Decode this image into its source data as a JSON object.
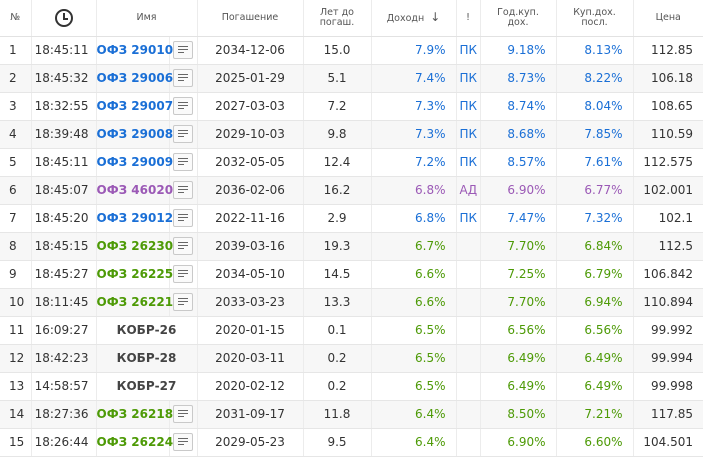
{
  "headers": {
    "num": "№",
    "time_icon": "clock-icon",
    "name": "Имя",
    "maturity": "Погашение",
    "years_1": "Лет до",
    "years_2": "погаш.",
    "yield": "Доходн",
    "sort_arrow": "↓",
    "flag": "!",
    "coupon_1": "Год.куп.",
    "coupon_2": "дох.",
    "lastcoupon_1": "Куп.дох.",
    "lastcoupon_2": "посл.",
    "price": "Цена"
  },
  "colors": {
    "blue": "#1a6fd6",
    "purple": "#9b59b6",
    "green": "#4d9a06",
    "dark": "#444444"
  },
  "rows": [
    {
      "num": "1",
      "time": "18:45:11",
      "name": "ОФЗ 29010",
      "menu": true,
      "maturity": "2034-12-06",
      "years": "15.0",
      "yield": "7.9%",
      "flag": "ПК",
      "coupon": "9.18%",
      "last": "8.13%",
      "price": "112.85",
      "color": "blue"
    },
    {
      "num": "2",
      "time": "18:45:32",
      "name": "ОФЗ 29006",
      "menu": true,
      "maturity": "2025-01-29",
      "years": "5.1",
      "yield": "7.4%",
      "flag": "ПК",
      "coupon": "8.73%",
      "last": "8.22%",
      "price": "106.18",
      "color": "blue"
    },
    {
      "num": "3",
      "time": "18:32:55",
      "name": "ОФЗ 29007",
      "menu": true,
      "maturity": "2027-03-03",
      "years": "7.2",
      "yield": "7.3%",
      "flag": "ПК",
      "coupon": "8.74%",
      "last": "8.04%",
      "price": "108.65",
      "color": "blue"
    },
    {
      "num": "4",
      "time": "18:39:48",
      "name": "ОФЗ 29008",
      "menu": true,
      "maturity": "2029-10-03",
      "years": "9.8",
      "yield": "7.3%",
      "flag": "ПК",
      "coupon": "8.68%",
      "last": "7.85%",
      "price": "110.59",
      "color": "blue"
    },
    {
      "num": "5",
      "time": "18:45:11",
      "name": "ОФЗ 29009",
      "menu": true,
      "maturity": "2032-05-05",
      "years": "12.4",
      "yield": "7.2%",
      "flag": "ПК",
      "coupon": "8.57%",
      "last": "7.61%",
      "price": "112.575",
      "color": "blue"
    },
    {
      "num": "6",
      "time": "18:45:07",
      "name": "ОФЗ 46020",
      "menu": true,
      "maturity": "2036-02-06",
      "years": "16.2",
      "yield": "6.8%",
      "flag": "АД",
      "coupon": "6.90%",
      "last": "6.77%",
      "price": "102.001",
      "color": "purple"
    },
    {
      "num": "7",
      "time": "18:45:20",
      "name": "ОФЗ 29012",
      "menu": true,
      "maturity": "2022-11-16",
      "years": "2.9",
      "yield": "6.8%",
      "flag": "ПК",
      "coupon": "7.47%",
      "last": "7.32%",
      "price": "102.1",
      "color": "blue"
    },
    {
      "num": "8",
      "time": "18:45:15",
      "name": "ОФЗ 26230",
      "menu": true,
      "maturity": "2039-03-16",
      "years": "19.3",
      "yield": "6.7%",
      "flag": "",
      "coupon": "7.70%",
      "last": "6.84%",
      "price": "112.5",
      "color": "green"
    },
    {
      "num": "9",
      "time": "18:45:27",
      "name": "ОФЗ 26225",
      "menu": true,
      "maturity": "2034-05-10",
      "years": "14.5",
      "yield": "6.6%",
      "flag": "",
      "coupon": "7.25%",
      "last": "6.79%",
      "price": "106.842",
      "color": "green"
    },
    {
      "num": "10",
      "time": "18:11:45",
      "name": "ОФЗ 26221",
      "menu": true,
      "maturity": "2033-03-23",
      "years": "13.3",
      "yield": "6.6%",
      "flag": "",
      "coupon": "7.70%",
      "last": "6.94%",
      "price": "110.894",
      "color": "green"
    },
    {
      "num": "11",
      "time": "16:09:27",
      "name": "КОБР-26",
      "menu": false,
      "maturity": "2020-01-15",
      "years": "0.1",
      "yield": "6.5%",
      "flag": "",
      "coupon": "6.56%",
      "last": "6.56%",
      "price": "99.992",
      "color": "green"
    },
    {
      "num": "12",
      "time": "18:42:23",
      "name": "КОБР-28",
      "menu": false,
      "maturity": "2020-03-11",
      "years": "0.2",
      "yield": "6.5%",
      "flag": "",
      "coupon": "6.49%",
      "last": "6.49%",
      "price": "99.994",
      "color": "green"
    },
    {
      "num": "13",
      "time": "14:58:57",
      "name": "КОБР-27",
      "menu": false,
      "maturity": "2020-02-12",
      "years": "0.2",
      "yield": "6.5%",
      "flag": "",
      "coupon": "6.49%",
      "last": "6.49%",
      "price": "99.998",
      "color": "green"
    },
    {
      "num": "14",
      "time": "18:27:36",
      "name": "ОФЗ 26218",
      "menu": true,
      "maturity": "2031-09-17",
      "years": "11.8",
      "yield": "6.4%",
      "flag": "",
      "coupon": "8.50%",
      "last": "7.21%",
      "price": "117.85",
      "color": "green"
    },
    {
      "num": "15",
      "time": "18:26:44",
      "name": "ОФЗ 26224",
      "menu": true,
      "maturity": "2029-05-23",
      "years": "9.5",
      "yield": "6.4%",
      "flag": "",
      "coupon": "6.90%",
      "last": "6.60%",
      "price": "104.501",
      "color": "green"
    }
  ]
}
